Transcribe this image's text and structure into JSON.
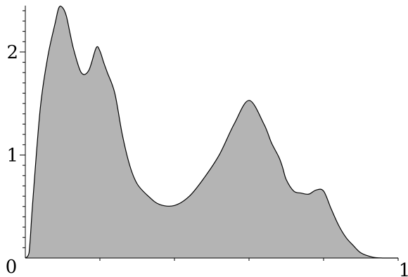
{
  "chart_data": {
    "type": "area",
    "title": "",
    "xlabel": "",
    "ylabel": "",
    "xlim": [
      0,
      1
    ],
    "ylim": [
      0,
      2.45
    ],
    "x_tick_labels": [
      "0",
      "1"
    ],
    "y_tick_labels": [
      "1",
      "2"
    ],
    "grid": false,
    "fill_color": "#b4b4b4",
    "line_color": "#000000",
    "series": [
      {
        "x": [
          0.0,
          0.01,
          0.02,
          0.04,
          0.06,
          0.08,
          0.09,
          0.1,
          0.11,
          0.12,
          0.13,
          0.15,
          0.17,
          0.19,
          0.2,
          0.21,
          0.22,
          0.24,
          0.26,
          0.28,
          0.3,
          0.33,
          0.36,
          0.4,
          0.44,
          0.48,
          0.52,
          0.56,
          0.6,
          0.64,
          0.66,
          0.68,
          0.69,
          0.7,
          0.72,
          0.74,
          0.76,
          0.78,
          0.8,
          0.82,
          0.84,
          0.86,
          0.88,
          0.9,
          0.93,
          0.96,
          0.98,
          1.0
        ],
        "y": [
          0.0,
          0.05,
          0.55,
          1.45,
          1.95,
          2.28,
          2.43,
          2.43,
          2.35,
          2.18,
          2.02,
          1.8,
          1.82,
          2.04,
          2.01,
          1.9,
          1.8,
          1.6,
          1.2,
          0.9,
          0.72,
          0.6,
          0.52,
          0.51,
          0.6,
          0.78,
          1.0,
          1.3,
          1.53,
          1.3,
          1.12,
          0.98,
          0.88,
          0.76,
          0.65,
          0.63,
          0.62,
          0.66,
          0.65,
          0.48,
          0.32,
          0.2,
          0.12,
          0.05,
          0.01,
          0.0,
          0.0,
          0.0
        ]
      }
    ]
  }
}
